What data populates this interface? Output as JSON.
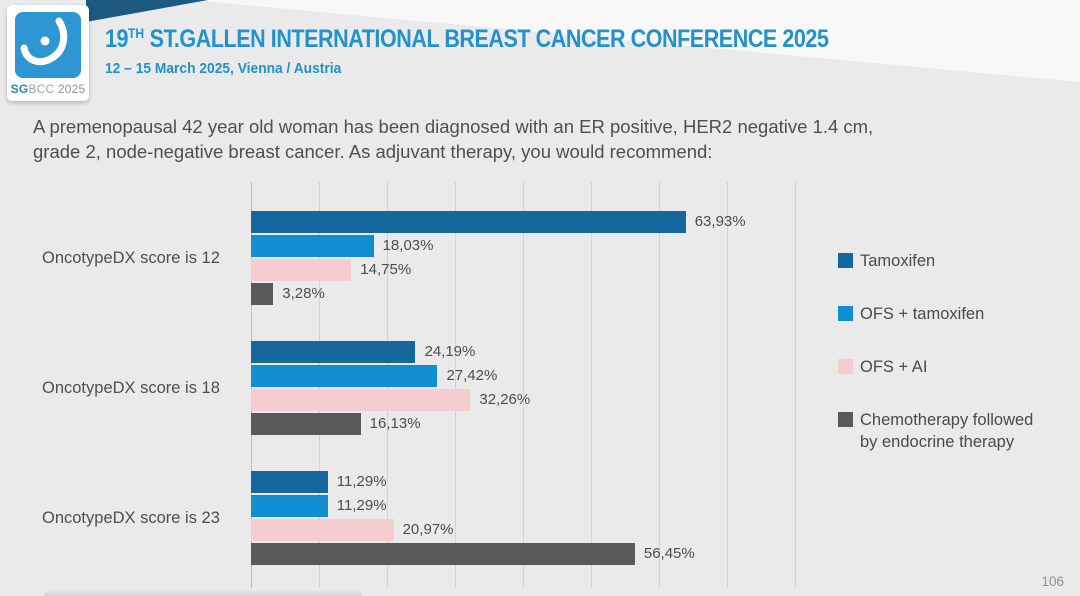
{
  "slide": {
    "logo": {
      "sg": "SG",
      "bcc": "BCC",
      "year": "2025"
    },
    "header": {
      "title_number": "19",
      "title_sup": "TH",
      "title_rest": " ST.GALLEN INTERNATIONAL BREAST CANCER CONFERENCE 2025",
      "subtitle": "12 – 15 March 2025, Vienna / Austria"
    },
    "question_lines": [
      "A premenopausal 42 year old woman has been diagnosed with an ER positive, HER2 negative 1.4 cm,",
      "grade 2, node-negative breast cancer. As adjuvant therapy, you would recommend:"
    ],
    "page_number": "106"
  },
  "chart_data": {
    "type": "bar",
    "orientation": "horizontal",
    "title": "",
    "categories": [
      "OncotypeDX score is 12",
      "OncotypeDX score is 18",
      "OncotypeDX score is 23"
    ],
    "series": [
      {
        "name": "Tamoxifen",
        "color": "#15689e",
        "values": [
          63.93,
          24.19,
          11.29
        ],
        "labels": [
          "63,93%",
          "24,19%",
          "11,29%"
        ]
      },
      {
        "name": "OFS + tamoxifen",
        "color": "#118ed2",
        "values": [
          18.03,
          27.42,
          11.29
        ],
        "labels": [
          "18,03%",
          "27,42%",
          "11,29%"
        ]
      },
      {
        "name": "OFS + AI",
        "color": "#f5cdd1",
        "values": [
          14.75,
          32.26,
          20.97
        ],
        "labels": [
          "14,75%",
          "32,26%",
          "20,97%"
        ]
      },
      {
        "name": "Chemotherapy followed by endocrine therapy",
        "color": "#595959",
        "values": [
          3.28,
          16.13,
          56.45
        ],
        "labels": [
          "3,28%",
          "16,13%",
          "56,45%"
        ]
      }
    ],
    "xlim": [
      0,
      80
    ],
    "gridline_interval": 10,
    "grid": true,
    "legend_position": "right",
    "value_label_format": "comma-decimal-percent"
  },
  "colors": {
    "background": "#eaeaea",
    "accent_blue": "#2191cf",
    "navy_wedge": "#1c5a80",
    "logo_blue": "#2e96d2",
    "body_text": "#4f4f4f",
    "gridline": "#d2d2d2"
  }
}
